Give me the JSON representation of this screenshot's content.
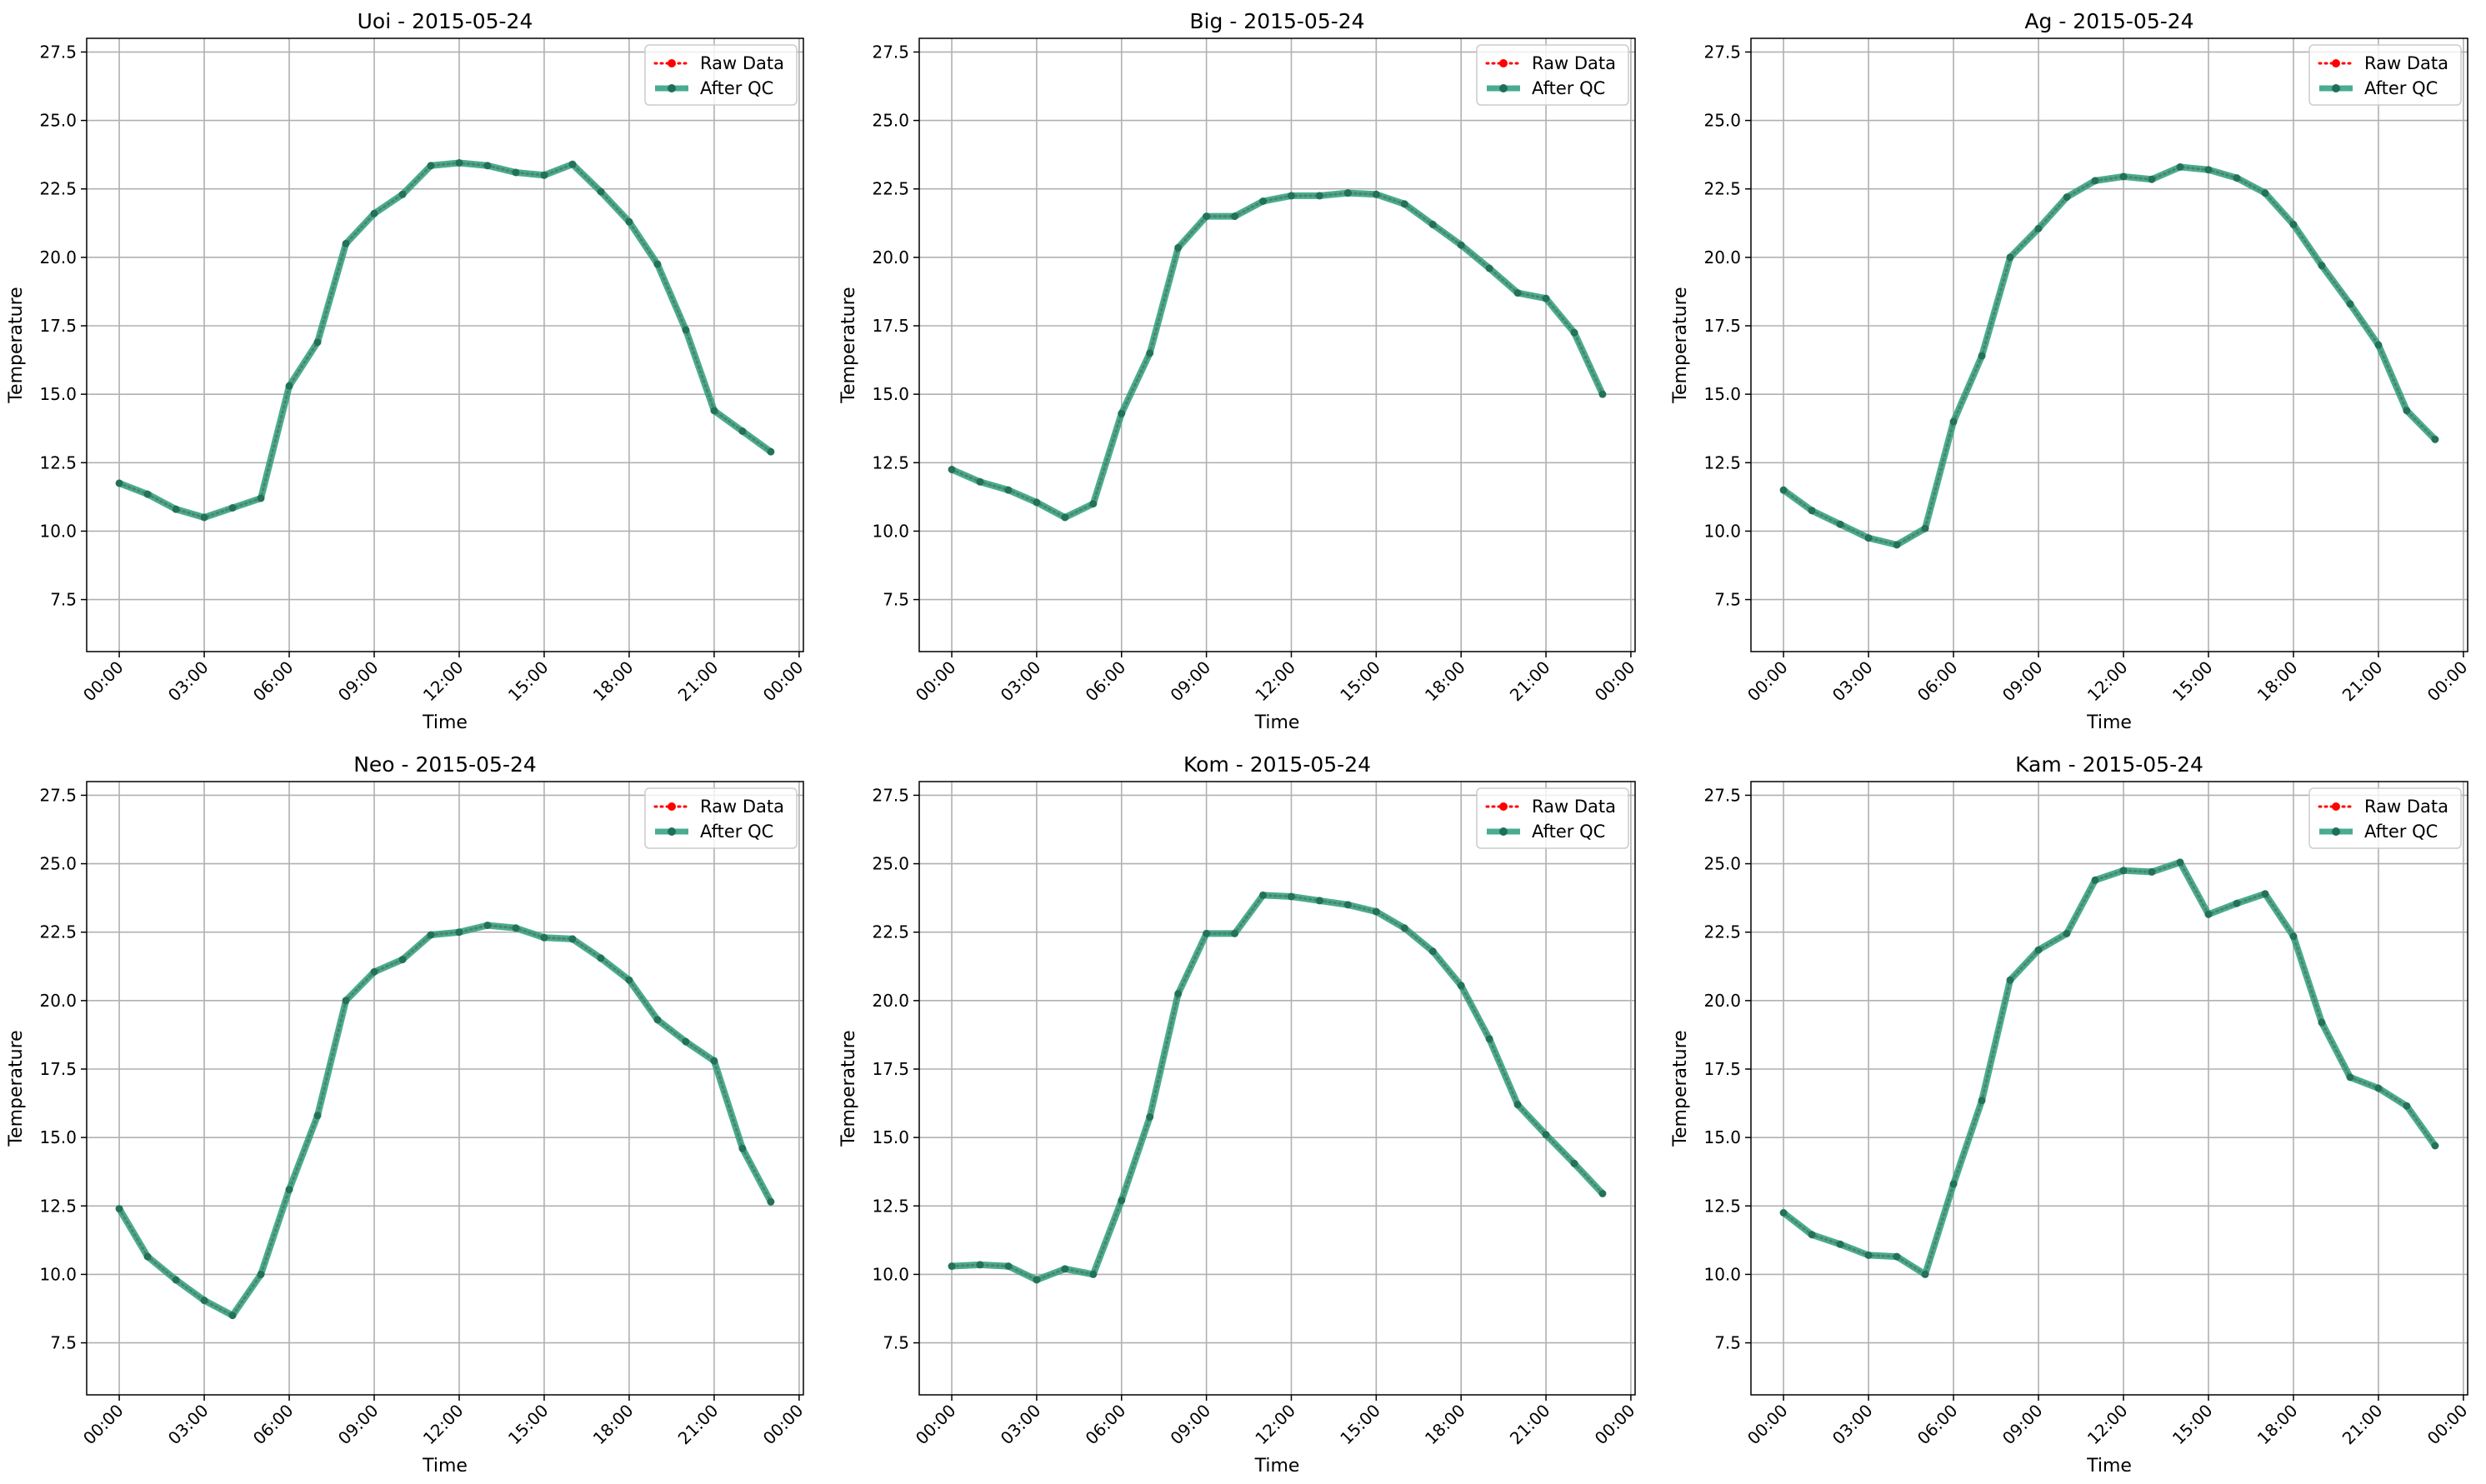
{
  "figure": {
    "background": "#ffffff"
  },
  "legend": {
    "position": "upper right",
    "entries": [
      {
        "label": "Raw Data",
        "color": "#ff0000",
        "style": "dotted line with dot markers"
      },
      {
        "label": "After QC",
        "color": "#2a9d7c",
        "style": "thick solid line with dot markers"
      }
    ]
  },
  "chart_data": [
    {
      "type": "line",
      "title": "Uoi - 2015-05-24",
      "xlabel": "Time",
      "ylabel": "Temperature",
      "xticks": [
        "00:00",
        "03:00",
        "06:00",
        "09:00",
        "12:00",
        "15:00",
        "18:00",
        "21:00",
        "00:00"
      ],
      "xlim_hours": [
        -1.15,
        24.15
      ],
      "ylim": [
        5.6,
        28.0
      ],
      "yticks": [
        "7.5",
        "10.0",
        "12.5",
        "15.0",
        "17.5",
        "20.0",
        "22.5",
        "25.0",
        "27.5"
      ],
      "grid": true,
      "x_hours": [
        0,
        1,
        2,
        3,
        4,
        5,
        6,
        7,
        8,
        9,
        10,
        11,
        12,
        13,
        14,
        15,
        16,
        17,
        18,
        19,
        20,
        21,
        22,
        23
      ],
      "series": [
        {
          "name": "Raw Data",
          "values": [
            11.75,
            11.35,
            10.8,
            10.5,
            10.85,
            11.2,
            15.3,
            16.9,
            20.5,
            21.6,
            22.3,
            23.35,
            23.45,
            23.35,
            23.1,
            23.0,
            23.4,
            22.4,
            21.3,
            19.75,
            17.35,
            14.4,
            13.65,
            12.9
          ]
        },
        {
          "name": "After QC",
          "values": [
            11.75,
            11.35,
            10.8,
            10.5,
            10.85,
            11.2,
            15.3,
            16.9,
            20.5,
            21.6,
            22.3,
            23.35,
            23.45,
            23.35,
            23.1,
            23.0,
            23.4,
            22.4,
            21.3,
            19.75,
            17.35,
            14.4,
            13.65,
            12.9
          ]
        }
      ]
    },
    {
      "type": "line",
      "title": "Big - 2015-05-24",
      "xlabel": "Time",
      "ylabel": "Temperature",
      "xticks": [
        "00:00",
        "03:00",
        "06:00",
        "09:00",
        "12:00",
        "15:00",
        "18:00",
        "21:00",
        "00:00"
      ],
      "xlim_hours": [
        -1.15,
        24.15
      ],
      "ylim": [
        5.6,
        28.0
      ],
      "yticks": [
        "7.5",
        "10.0",
        "12.5",
        "15.0",
        "17.5",
        "20.0",
        "22.5",
        "25.0",
        "27.5"
      ],
      "grid": true,
      "x_hours": [
        0,
        1,
        2,
        3,
        4,
        5,
        6,
        7,
        8,
        9,
        10,
        11,
        12,
        13,
        14,
        15,
        16,
        17,
        18,
        19,
        20,
        21,
        22,
        23
      ],
      "series": [
        {
          "name": "Raw Data",
          "values": [
            12.25,
            11.8,
            11.5,
            11.05,
            10.5,
            11.0,
            14.3,
            16.5,
            20.35,
            21.5,
            21.5,
            22.05,
            22.25,
            22.25,
            22.35,
            22.3,
            21.95,
            21.2,
            20.45,
            19.6,
            18.7,
            18.5,
            17.25,
            15.0
          ]
        },
        {
          "name": "After QC",
          "values": [
            12.25,
            11.8,
            11.5,
            11.05,
            10.5,
            11.0,
            14.3,
            16.5,
            20.35,
            21.5,
            21.5,
            22.05,
            22.25,
            22.25,
            22.35,
            22.3,
            21.95,
            21.2,
            20.45,
            19.6,
            18.7,
            18.5,
            17.25,
            15.0
          ]
        }
      ]
    },
    {
      "type": "line",
      "title": "Ag - 2015-05-24",
      "xlabel": "Time",
      "ylabel": "Temperature",
      "xticks": [
        "00:00",
        "03:00",
        "06:00",
        "09:00",
        "12:00",
        "15:00",
        "18:00",
        "21:00",
        "00:00"
      ],
      "xlim_hours": [
        -1.15,
        24.15
      ],
      "ylim": [
        5.6,
        28.0
      ],
      "yticks": [
        "7.5",
        "10.0",
        "12.5",
        "15.0",
        "17.5",
        "20.0",
        "22.5",
        "25.0",
        "27.5"
      ],
      "grid": true,
      "x_hours": [
        0,
        1,
        2,
        3,
        4,
        5,
        6,
        7,
        8,
        9,
        10,
        11,
        12,
        13,
        14,
        15,
        16,
        17,
        18,
        19,
        20,
        21,
        22,
        23
      ],
      "series": [
        {
          "name": "Raw Data",
          "values": [
            11.5,
            10.75,
            10.25,
            9.75,
            9.5,
            10.1,
            14.0,
            16.4,
            20.0,
            21.05,
            22.2,
            22.8,
            22.95,
            22.85,
            23.3,
            23.2,
            22.9,
            22.35,
            21.2,
            19.7,
            18.3,
            16.8,
            14.4,
            13.35
          ]
        },
        {
          "name": "After QC",
          "values": [
            11.5,
            10.75,
            10.25,
            9.75,
            9.5,
            10.1,
            14.0,
            16.4,
            20.0,
            21.05,
            22.2,
            22.8,
            22.95,
            22.85,
            23.3,
            23.2,
            22.9,
            22.35,
            21.2,
            19.7,
            18.3,
            16.8,
            14.4,
            13.35
          ]
        }
      ]
    },
    {
      "type": "line",
      "title": "Neo - 2015-05-24",
      "xlabel": "Time",
      "ylabel": "Temperature",
      "xticks": [
        "00:00",
        "03:00",
        "06:00",
        "09:00",
        "12:00",
        "15:00",
        "18:00",
        "21:00",
        "00:00"
      ],
      "xlim_hours": [
        -1.15,
        24.15
      ],
      "ylim": [
        5.6,
        28.0
      ],
      "yticks": [
        "7.5",
        "10.0",
        "12.5",
        "15.0",
        "17.5",
        "20.0",
        "22.5",
        "25.0",
        "27.5"
      ],
      "grid": true,
      "x_hours": [
        0,
        1,
        2,
        3,
        4,
        5,
        6,
        7,
        8,
        9,
        10,
        11,
        12,
        13,
        14,
        15,
        16,
        17,
        18,
        19,
        20,
        21,
        22,
        23
      ],
      "series": [
        {
          "name": "Raw Data",
          "values": [
            12.4,
            10.65,
            9.8,
            9.05,
            8.5,
            10.0,
            13.1,
            15.8,
            20.0,
            21.05,
            21.5,
            22.4,
            22.5,
            22.75,
            22.65,
            22.3,
            22.25,
            21.55,
            20.75,
            19.3,
            18.5,
            17.8,
            14.6,
            12.65
          ]
        },
        {
          "name": "After QC",
          "values": [
            12.4,
            10.65,
            9.8,
            9.05,
            8.5,
            10.0,
            13.1,
            15.8,
            20.0,
            21.05,
            21.5,
            22.4,
            22.5,
            22.75,
            22.65,
            22.3,
            22.25,
            21.55,
            20.75,
            19.3,
            18.5,
            17.8,
            14.6,
            12.65
          ]
        }
      ]
    },
    {
      "type": "line",
      "title": "Kom - 2015-05-24",
      "xlabel": "Time",
      "ylabel": "Temperature",
      "xticks": [
        "00:00",
        "03:00",
        "06:00",
        "09:00",
        "12:00",
        "15:00",
        "18:00",
        "21:00",
        "00:00"
      ],
      "xlim_hours": [
        -1.15,
        24.15
      ],
      "ylim": [
        5.6,
        28.0
      ],
      "yticks": [
        "7.5",
        "10.0",
        "12.5",
        "15.0",
        "17.5",
        "20.0",
        "22.5",
        "25.0",
        "27.5"
      ],
      "grid": true,
      "x_hours": [
        0,
        1,
        2,
        3,
        4,
        5,
        6,
        7,
        8,
        9,
        10,
        11,
        12,
        13,
        14,
        15,
        16,
        17,
        18,
        19,
        20,
        21,
        22,
        23
      ],
      "series": [
        {
          "name": "Raw Data",
          "values": [
            10.3,
            10.35,
            10.3,
            9.8,
            10.2,
            10.0,
            12.7,
            15.75,
            20.25,
            22.45,
            22.45,
            23.85,
            23.8,
            23.65,
            23.5,
            23.25,
            22.65,
            21.8,
            20.55,
            18.6,
            16.2,
            15.1,
            14.05,
            12.95
          ]
        },
        {
          "name": "After QC",
          "values": [
            10.3,
            10.35,
            10.3,
            9.8,
            10.2,
            10.0,
            12.7,
            15.75,
            20.25,
            22.45,
            22.45,
            23.85,
            23.8,
            23.65,
            23.5,
            23.25,
            22.65,
            21.8,
            20.55,
            18.6,
            16.2,
            15.1,
            14.05,
            12.95
          ]
        }
      ]
    },
    {
      "type": "line",
      "title": "Kam - 2015-05-24",
      "xlabel": "Time",
      "ylabel": "Temperature",
      "xticks": [
        "00:00",
        "03:00",
        "06:00",
        "09:00",
        "12:00",
        "15:00",
        "18:00",
        "21:00",
        "00:00"
      ],
      "xlim_hours": [
        -1.15,
        24.15
      ],
      "ylim": [
        5.6,
        28.0
      ],
      "yticks": [
        "7.5",
        "10.0",
        "12.5",
        "15.0",
        "17.5",
        "20.0",
        "22.5",
        "25.0",
        "27.5"
      ],
      "grid": true,
      "x_hours": [
        0,
        1,
        2,
        3,
        4,
        5,
        6,
        7,
        8,
        9,
        10,
        11,
        12,
        13,
        14,
        15,
        16,
        17,
        18,
        19,
        20,
        21,
        22,
        23
      ],
      "series": [
        {
          "name": "Raw Data",
          "values": [
            12.25,
            11.45,
            11.1,
            10.7,
            10.65,
            10.0,
            13.3,
            16.35,
            20.75,
            21.85,
            22.45,
            24.4,
            24.75,
            24.7,
            25.05,
            23.15,
            23.55,
            23.9,
            22.35,
            19.2,
            17.2,
            16.8,
            16.15,
            14.7
          ]
        },
        {
          "name": "After QC",
          "values": [
            12.25,
            11.45,
            11.1,
            10.7,
            10.65,
            10.0,
            13.3,
            16.35,
            20.75,
            21.85,
            22.45,
            24.4,
            24.75,
            24.7,
            25.05,
            23.15,
            23.55,
            23.9,
            22.35,
            19.2,
            17.2,
            16.8,
            16.15,
            14.7
          ]
        }
      ]
    }
  ]
}
